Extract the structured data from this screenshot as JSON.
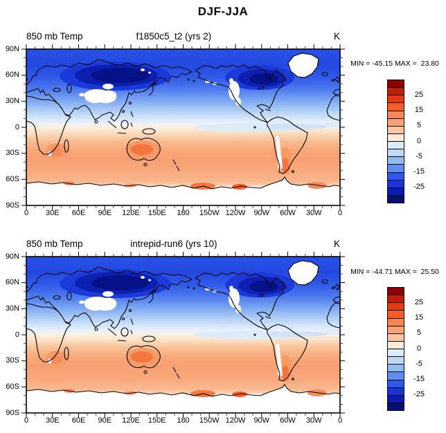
{
  "title": "DJF-JJA",
  "panels": [
    {
      "left_label": "850 mb Temp",
      "center_label": "f1850c5_t2 (yrs 2)",
      "right_label": "K",
      "stats": "MIN = -45.15 MAX =  23.80"
    },
    {
      "left_label": "850 mb Temp",
      "center_label": "intrepid-run6 (yrs 10)",
      "right_label": "K",
      "stats": "MIN = -44.71 MAX =  25.50"
    }
  ],
  "axes": {
    "lat_ticks": [
      "90N",
      "60N",
      "30N",
      "0",
      "30S",
      "60S",
      "90S"
    ],
    "lon_ticks": [
      "0",
      "30E",
      "60E",
      "90E",
      "120E",
      "150E",
      "180",
      "150W",
      "120W",
      "90W",
      "60W",
      "30W",
      "0"
    ],
    "minor_ticks_per_major_interval": 2
  },
  "colorbar": {
    "colors": [
      "#8b0000",
      "#c41b07",
      "#e23a12",
      "#f45d28",
      "#f88655",
      "#fba274",
      "#fcc6a2",
      "#fdead8",
      "#dcebf8",
      "#bedaf5",
      "#8fbaf3",
      "#5f8df2",
      "#2c58ee",
      "#1a33dd",
      "#0c1cb0",
      "#041173"
    ],
    "labels": [
      {
        "text": "25",
        "boundary": 2
      },
      {
        "text": "15",
        "boundary": 4
      },
      {
        "text": "5",
        "boundary": 6
      },
      {
        "text": "0",
        "boundary": 8
      },
      {
        "text": "-5",
        "boundary": 10
      },
      {
        "text": "-15",
        "boundary": 12
      },
      {
        "text": "-25",
        "boundary": 14
      }
    ]
  },
  "chart_data": {
    "type": "heatmap",
    "title": "DJF-JJA",
    "variable": "850 mb Temp",
    "units": "K",
    "projection": "cylindrical equidistant, longitude 0E-360E left to right, latitude 90N-90S top to bottom",
    "panels": [
      {
        "case": "f1850c5_t2 (yrs 2)",
        "min": -45.15,
        "max": 23.8
      },
      {
        "case": "intrepid-run6 (yrs 10)",
        "min": -44.71,
        "max": 25.5
      }
    ],
    "contour_levels": [
      -30,
      -25,
      -20,
      -15,
      -10,
      -5,
      -2.5,
      0,
      2.5,
      5,
      10,
      15,
      20,
      25,
      30
    ],
    "labeled_colorbar_levels": [
      25,
      15,
      5,
      0,
      -5,
      -15,
      -25
    ],
    "x_ticks_deg": [
      0,
      30,
      60,
      90,
      120,
      150,
      180,
      210,
      240,
      270,
      300,
      330,
      360
    ],
    "y_ticks_deg": [
      90,
      60,
      30,
      0,
      -30,
      -60,
      -90
    ],
    "zonal_mean_estimate_K": [
      {
        "lat": 90,
        "K": -16
      },
      {
        "lat": 75,
        "K": -20
      },
      {
        "lat": 60,
        "K": -22
      },
      {
        "lat": 45,
        "K": -13
      },
      {
        "lat": 30,
        "K": -7
      },
      {
        "lat": 20,
        "K": -4
      },
      {
        "lat": 10,
        "K": -1.5
      },
      {
        "lat": 0,
        "K": 0.5
      },
      {
        "lat": -10,
        "K": 2.5
      },
      {
        "lat": -25,
        "K": 5.5
      },
      {
        "lat": -45,
        "K": 5
      },
      {
        "lat": -60,
        "K": 4.5
      },
      {
        "lat": -75,
        "K": null
      }
    ],
    "missing_data_regions": [
      "Tibetan Plateau",
      "Greenland",
      "Rocky Mountains",
      "Andes",
      "Antarctica interior"
    ],
    "gradient_stops": [
      {
        "pos": 0.0,
        "color": "#2a52e8"
      },
      {
        "pos": 0.1,
        "color": "#2348e0"
      },
      {
        "pos": 0.18,
        "color": "#2f5ae8"
      },
      {
        "pos": 0.26,
        "color": "#4f7cee"
      },
      {
        "pos": 0.33,
        "color": "#7ea8f2"
      },
      {
        "pos": 0.385,
        "color": "#a9caf5"
      },
      {
        "pos": 0.44,
        "color": "#d3e5f9"
      },
      {
        "pos": 0.475,
        "color": "#ebf2fb"
      },
      {
        "pos": 0.5,
        "color": "#fdf0e0"
      },
      {
        "pos": 0.535,
        "color": "#fbdfc4"
      },
      {
        "pos": 0.585,
        "color": "#f9c096"
      },
      {
        "pos": 0.645,
        "color": "#f8a877"
      },
      {
        "pos": 0.7,
        "color": "#f7a071"
      },
      {
        "pos": 0.78,
        "color": "#f8a97c"
      },
      {
        "pos": 0.845,
        "color": "#f9b78e"
      },
      {
        "pos": 0.872,
        "color": "#fbcfae"
      },
      {
        "pos": 0.884,
        "color": "#ffffff"
      },
      {
        "pos": 1.0,
        "color": "#ffffff"
      }
    ]
  }
}
